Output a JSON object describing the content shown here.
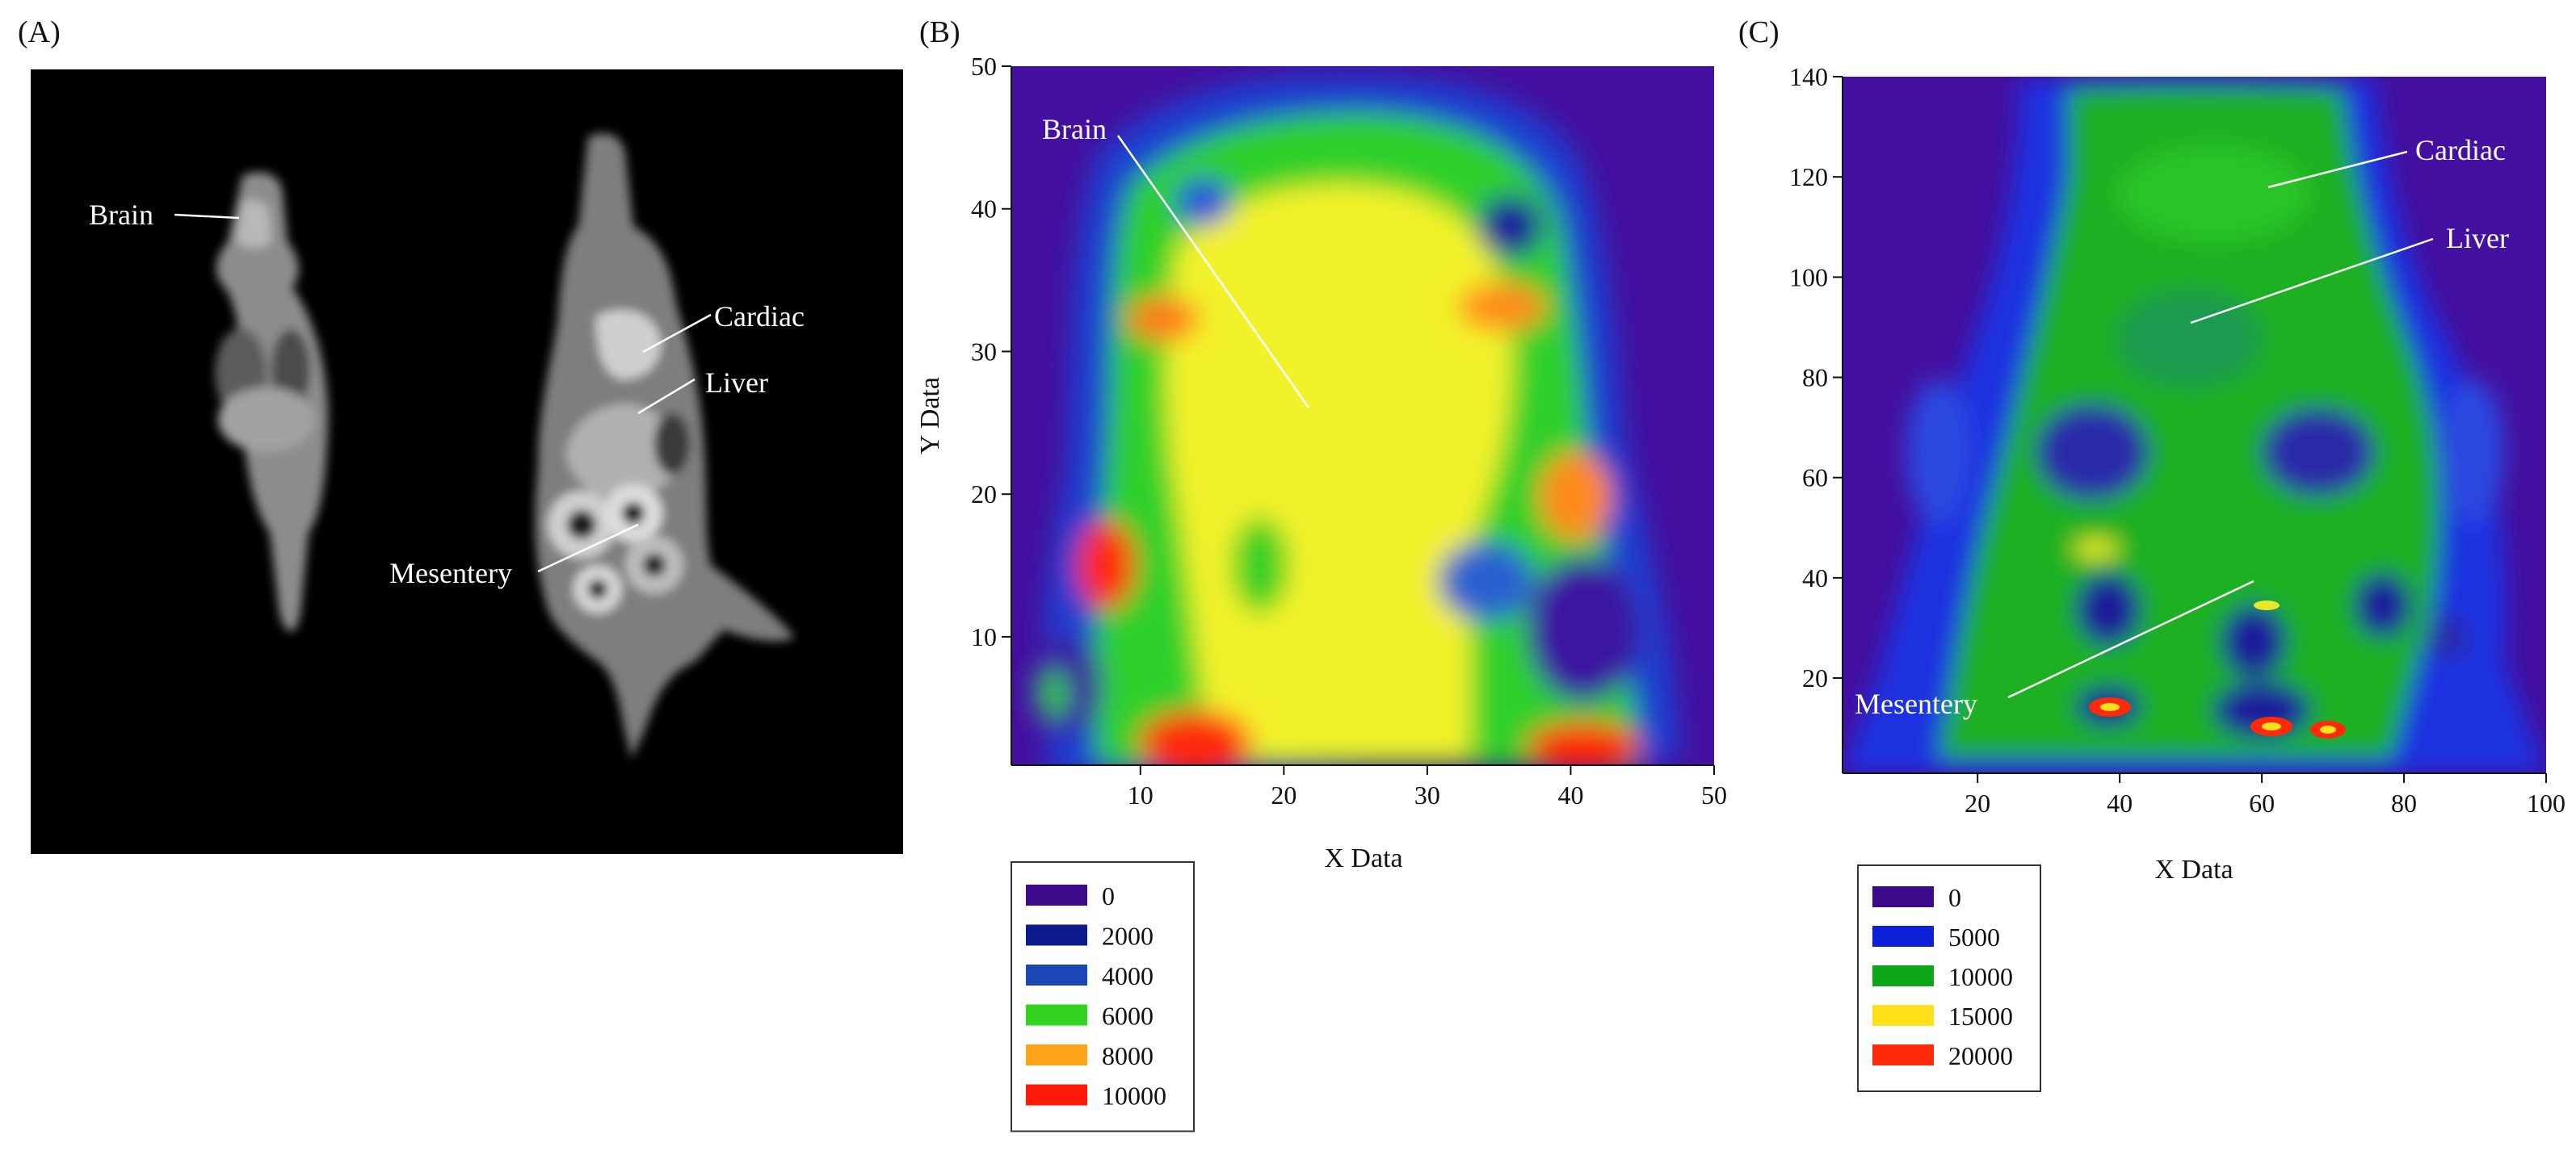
{
  "panels": {
    "a": {
      "label": "(A)"
    },
    "b": {
      "label": "(B)"
    },
    "c": {
      "label": "(C)"
    }
  },
  "panel_a": {
    "labels": {
      "brain": "Brain",
      "cardiac": "Cardiac",
      "liver": "Liver",
      "mesentery": "Mesentery"
    }
  },
  "chart_data": [
    {
      "type": "heatmap",
      "panel": "(B)",
      "xlabel": "X Data",
      "ylabel": "Y Data",
      "xlim": [
        1,
        50
      ],
      "ylim": [
        1,
        50
      ],
      "xticks": [
        10,
        20,
        30,
        40,
        50
      ],
      "yticks": [
        10,
        20,
        30,
        40,
        50
      ],
      "annotations": [
        "Brain"
      ],
      "legend": {
        "placement": "bottom-left",
        "entries": [
          {
            "label": "0",
            "color": "#3d0a8c"
          },
          {
            "label": "2000",
            "color": "#0d1a8c"
          },
          {
            "label": "4000",
            "color": "#1a47b3"
          },
          {
            "label": "6000",
            "color": "#33d41f"
          },
          {
            "label": "8000",
            "color": "#ffa31a"
          },
          {
            "label": "10000",
            "color": "#ff1a0a"
          }
        ]
      }
    },
    {
      "type": "heatmap",
      "panel": "(C)",
      "xlabel": "X Data",
      "ylabel": "",
      "xlim": [
        1,
        100
      ],
      "ylim": [
        1,
        140
      ],
      "xticks": [
        20,
        40,
        60,
        80,
        100
      ],
      "yticks": [
        20,
        40,
        60,
        80,
        100,
        120,
        140
      ],
      "annotations": [
        "Cardiac",
        "Liver",
        "Mesentery"
      ],
      "legend": {
        "placement": "bottom-left",
        "entries": [
          {
            "label": "0",
            "color": "#3d0a8c"
          },
          {
            "label": "5000",
            "color": "#0d21d9"
          },
          {
            "label": "10000",
            "color": "#0da61a"
          },
          {
            "label": "15000",
            "color": "#ffe01a"
          },
          {
            "label": "20000",
            "color": "#ff2a0a"
          }
        ]
      }
    }
  ]
}
